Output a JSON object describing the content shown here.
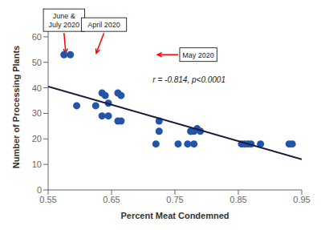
{
  "chart_data": {
    "type": "scatter",
    "xlabel": "Percent Meat Condemned",
    "ylabel": "Number of Processing Plants",
    "series": [
      {
        "type": "scatter",
        "color": "#2255aa",
        "x": [
          0.575,
          0.585,
          0.595,
          0.625,
          0.635,
          0.635,
          0.64,
          0.645,
          0.645,
          0.66,
          0.66,
          0.665,
          0.665,
          0.72,
          0.725,
          0.725,
          0.755,
          0.77,
          0.775,
          0.775,
          0.78,
          0.78,
          0.785,
          0.79,
          0.855,
          0.86,
          0.865,
          0.87,
          0.885,
          0.93,
          0.935
        ],
        "values": [
          53,
          53,
          33,
          33,
          29,
          38,
          37,
          29,
          34,
          27,
          38,
          27,
          37,
          18,
          23,
          27,
          18,
          18,
          23,
          23,
          23,
          18,
          24,
          23,
          18,
          18,
          18,
          18,
          18,
          18,
          18
        ]
      },
      {
        "type": "line",
        "color": "#1a1a3a",
        "x": [
          0.55,
          0.95
        ],
        "values": [
          40.5,
          12.0
        ]
      }
    ],
    "xlim": [
      0.55,
      0.95
    ],
    "ylim": [
      0,
      65
    ],
    "xticks": [
      0.55,
      0.65,
      0.75,
      0.85,
      0.95
    ],
    "yticks": [
      0,
      10,
      20,
      30,
      40,
      50,
      60
    ],
    "grid": false,
    "annotations": [
      {
        "text": "r = -0.814, p<0.0001",
        "x": 0.715,
        "y": 43
      },
      {
        "text": "June &\nJuly 2020",
        "x": 0.575,
        "y": 61.5,
        "arrow_to": [
          0.578,
          53
        ],
        "color": "red"
      },
      {
        "text": "April 2020",
        "x": 0.638,
        "y": 61.5,
        "arrow_to": [
          0.625,
          53
        ],
        "color": "red"
      },
      {
        "text": "May 2020",
        "x": 0.755,
        "y": 53,
        "arrow_to": [
          0.72,
          53
        ],
        "color": "red"
      }
    ]
  }
}
